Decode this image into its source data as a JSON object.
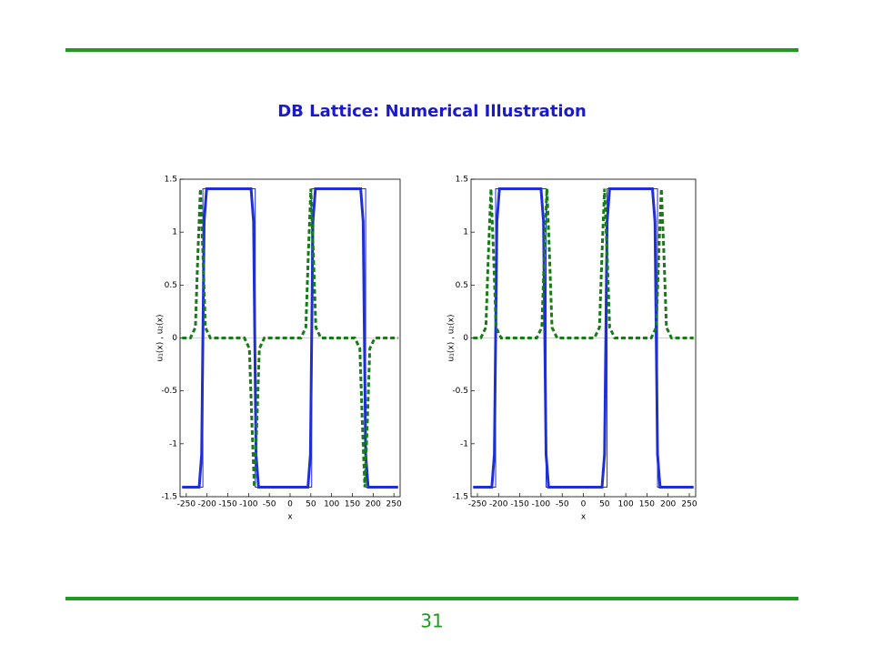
{
  "slide": {
    "title": "DB Lattice: Numerical Illustration",
    "page_number": "31"
  },
  "chart_data": [
    {
      "type": "line",
      "xlabel": "x",
      "ylabel": "u₁(x) , u₂(x)",
      "xlim": [
        -265,
        265
      ],
      "ylim": [
        -1.5,
        1.5
      ],
      "xticks": [
        -250,
        -200,
        -150,
        -100,
        -50,
        0,
        50,
        100,
        150,
        200,
        250
      ],
      "yticks": [
        -1.5,
        -1,
        -0.5,
        0,
        0.5,
        1,
        1.5
      ],
      "series": [
        {
          "color": "#1f2fd6",
          "style": "solid",
          "width": 3,
          "x": [
            -260,
            -219,
            -213,
            -207,
            -201,
            -94,
            -88,
            -82,
            -76,
            43,
            49,
            55,
            61,
            170,
            176,
            182,
            188,
            260
          ],
          "values": [
            -1.41,
            -1.41,
            -1.1,
            1.1,
            1.41,
            1.41,
            1.1,
            -1.1,
            -1.41,
            -1.41,
            -1.1,
            1.1,
            1.41,
            1.41,
            1.1,
            -1.1,
            -1.41,
            -1.41
          ]
        },
        {
          "color": "#1f2fd6",
          "style": "solid",
          "width": 1,
          "x": [
            -260,
            -210,
            -210,
            -84,
            -84,
            52,
            52,
            182,
            182,
            260
          ],
          "values": [
            -1.41,
            -1.41,
            1.41,
            1.41,
            -1.41,
            -1.41,
            1.41,
            1.41,
            -1.41,
            -1.41
          ]
        },
        {
          "color": "#1a7a1a",
          "style": "dashed",
          "width": 3,
          "x": [
            -260,
            -240,
            -228,
            -222,
            -216,
            -210,
            -204,
            -192,
            -110,
            -98,
            -92,
            -86,
            -80,
            -74,
            -62,
            26,
            38,
            44,
            50,
            56,
            62,
            74,
            156,
            168,
            174,
            180,
            186,
            192,
            204,
            260
          ],
          "values": [
            0,
            0,
            0.1,
            0.8,
            1.41,
            0.8,
            0.1,
            0,
            0,
            -0.1,
            -0.8,
            -1.41,
            -0.8,
            -0.1,
            0,
            0,
            0.1,
            0.8,
            1.41,
            0.8,
            0.1,
            0,
            0,
            -0.1,
            -0.8,
            -1.41,
            -0.8,
            -0.1,
            0,
            0
          ]
        }
      ]
    },
    {
      "type": "line",
      "xlabel": "x",
      "ylabel": "u₁(x) , u₂(x)",
      "xlim": [
        -265,
        265
      ],
      "ylim": [
        -1.5,
        1.5
      ],
      "xticks": [
        -250,
        -200,
        -150,
        -100,
        -50,
        0,
        50,
        100,
        150,
        200,
        250
      ],
      "yticks": [
        -1.5,
        -1,
        -0.5,
        0,
        0.5,
        1,
        1.5
      ],
      "series": [
        {
          "color": "#1f2fd6",
          "style": "solid",
          "width": 3,
          "x": [
            -260,
            -216,
            -210,
            -204,
            -198,
            -100,
            -94,
            -88,
            -82,
            44,
            50,
            56,
            62,
            163,
            169,
            175,
            181,
            260
          ],
          "values": [
            -1.41,
            -1.41,
            -1.1,
            1.1,
            1.41,
            1.41,
            1.1,
            -1.1,
            -1.41,
            -1.41,
            -1.1,
            1.1,
            1.41,
            1.41,
            1.1,
            -1.1,
            -1.41,
            -1.41
          ]
        },
        {
          "color": "#1f2fd6",
          "style": "solid",
          "width": 1,
          "x": [
            -260,
            -207,
            -207,
            -88,
            -88,
            56,
            56,
            175,
            175,
            260
          ],
          "values": [
            -1.41,
            -1.41,
            1.41,
            1.41,
            -1.41,
            -1.41,
            1.41,
            1.41,
            -1.41,
            -1.41
          ]
        },
        {
          "color": "#1a7a1a",
          "style": "dashed",
          "width": 3,
          "x": [
            -260,
            -242,
            -230,
            -224,
            -218,
            -212,
            -206,
            -194,
            -110,
            -98,
            -92,
            -86,
            -80,
            -74,
            -62,
            26,
            38,
            44,
            50,
            56,
            62,
            74,
            160,
            172,
            178,
            184,
            190,
            196,
            208,
            260
          ],
          "values": [
            0,
            0,
            0.1,
            0.8,
            1.41,
            0.8,
            0.1,
            0,
            0,
            0.1,
            0.8,
            1.41,
            0.8,
            0.1,
            0,
            0,
            0.1,
            0.8,
            1.41,
            0.8,
            0.1,
            0,
            0,
            0.1,
            0.8,
            1.41,
            0.8,
            0.1,
            0,
            0
          ]
        }
      ]
    }
  ]
}
